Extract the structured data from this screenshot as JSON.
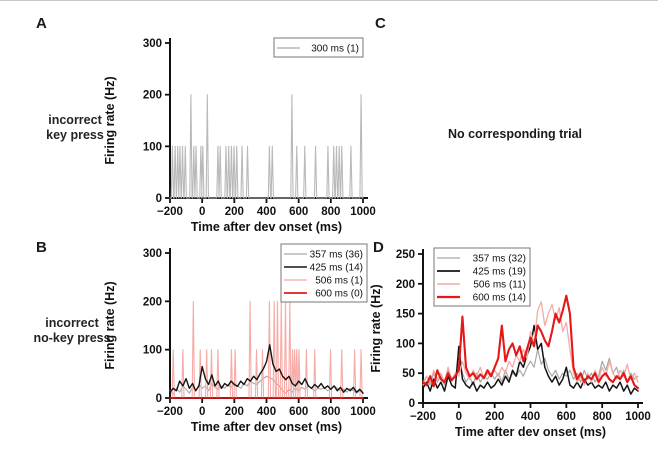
{
  "panel_labels": {
    "a": "A",
    "b": "B",
    "c": "C",
    "d": "D"
  },
  "row_labels": {
    "a_line1": "incorrect",
    "a_line2": "key press",
    "b_line1": "incorrect",
    "b_line2": "no-key press"
  },
  "panel_c_text": "No corresponding trial",
  "colors": {
    "axis": "#111111",
    "gray": "#a8a8a8",
    "light_gray": "#b9b9b9",
    "black": "#151515",
    "pink": "#f6aba7",
    "red": "#e51717",
    "legend_border": "#777777"
  },
  "chart_data": [
    {
      "id": "chartA",
      "type": "line",
      "panel": "A",
      "xlabel": "Time after dev onset (ms)",
      "ylabel": "Firing rate (Hz)",
      "xlim": [
        -200,
        1000
      ],
      "ylim": [
        0,
        300
      ],
      "xticks": [
        -200,
        0,
        200,
        400,
        600,
        800,
        1000
      ],
      "yticks": [
        0,
        100,
        200,
        300
      ],
      "legend_position": "top-right",
      "legend": [
        {
          "label": "300 ms (1)",
          "color": "#b9b9b9",
          "width": 1.4
        }
      ],
      "series": [
        {
          "name": "300 ms (1)",
          "color": "#b9b9b9",
          "width": 1.1,
          "mode": "spikes",
          "spikes": [
            [
              -185,
              100
            ],
            [
              -168,
              100
            ],
            [
              -152,
              100
            ],
            [
              -138,
              100
            ],
            [
              -122,
              100
            ],
            [
              -105,
              100
            ],
            [
              -70,
              200
            ],
            [
              -52,
              100
            ],
            [
              -38,
              100
            ],
            [
              -8,
              100
            ],
            [
              4,
              100
            ],
            [
              32,
              200
            ],
            [
              98,
              100
            ],
            [
              112,
              100
            ],
            [
              148,
              100
            ],
            [
              165,
              100
            ],
            [
              182,
              100
            ],
            [
              198,
              100
            ],
            [
              215,
              100
            ],
            [
              248,
              100
            ],
            [
              282,
              100
            ],
            [
              418,
              100
            ],
            [
              436,
              100
            ],
            [
              558,
              200
            ],
            [
              588,
              100
            ],
            [
              638,
              100
            ],
            [
              705,
              100
            ],
            [
              782,
              100
            ],
            [
              818,
              100
            ],
            [
              835,
              100
            ],
            [
              852,
              100
            ],
            [
              868,
              100
            ],
            [
              925,
              100
            ],
            [
              988,
              200
            ]
          ]
        }
      ]
    },
    {
      "id": "chartB",
      "type": "line",
      "panel": "B",
      "xlabel": "Time after dev onset (ms)",
      "ylabel": "Firing rate (Hz)",
      "xlim": [
        -200,
        1000
      ],
      "ylim": [
        0,
        300
      ],
      "xticks": [
        -200,
        0,
        200,
        400,
        600,
        800,
        1000
      ],
      "yticks": [
        0,
        100,
        200,
        300
      ],
      "legend_position": "top-right",
      "legend": [
        {
          "label": "357 ms (36)",
          "color": "#a8a8a8",
          "width": 1.2
        },
        {
          "label": "425 ms (14)",
          "color": "#151515",
          "width": 1.5
        },
        {
          "label": "506 ms  (1)",
          "color": "#f6aba7",
          "width": 1.2
        },
        {
          "label": "600 ms  (0)",
          "color": "#e51717",
          "width": 1.8
        }
      ],
      "series": [
        {
          "name": "357 ms (36)",
          "color": "#a8a8a8",
          "width": 1.1,
          "x_start": -200,
          "x_step": 20,
          "values": [
            15,
            8,
            20,
            12,
            25,
            18,
            10,
            22,
            15,
            28,
            20,
            25,
            15,
            30,
            22,
            18,
            25,
            20,
            28,
            22,
            30,
            25,
            20,
            30,
            25,
            35,
            30,
            28,
            35,
            40,
            45,
            42,
            38,
            30,
            25,
            15,
            10,
            18,
            12,
            20,
            15,
            22,
            18,
            25,
            20,
            15,
            20,
            18,
            22,
            15,
            18,
            25,
            20,
            15,
            18,
            12,
            20,
            15,
            10,
            15,
            12
          ]
        },
        {
          "name": "506 ms (1)",
          "color": "#f6aba7",
          "width": 1.1,
          "mode": "spikes",
          "spikes": [
            [
              -180,
              100
            ],
            [
              -120,
              100
            ],
            [
              -55,
              200
            ],
            [
              -12,
              100
            ],
            [
              28,
              100
            ],
            [
              58,
              100
            ],
            [
              98,
              100
            ],
            [
              182,
              100
            ],
            [
              205,
              100
            ],
            [
              298,
              200
            ],
            [
              338,
              100
            ],
            [
              375,
              100
            ],
            [
              418,
              200
            ],
            [
              448,
              200
            ],
            [
              468,
              200
            ],
            [
              492,
              200
            ],
            [
              518,
              200
            ],
            [
              545,
              200
            ],
            [
              562,
              100
            ],
            [
              575,
              100
            ],
            [
              588,
              100
            ],
            [
              602,
              100
            ],
            [
              648,
              100
            ],
            [
              700,
              100
            ],
            [
              798,
              100
            ],
            [
              868,
              100
            ],
            [
              948,
              100
            ],
            [
              988,
              100
            ]
          ]
        },
        {
          "name": "425 ms (14)",
          "color": "#151515",
          "width": 1.4,
          "x_start": -200,
          "x_step": 20,
          "values": [
            12,
            20,
            15,
            35,
            25,
            40,
            20,
            30,
            15,
            25,
            65,
            40,
            28,
            48,
            25,
            35,
            20,
            30,
            25,
            35,
            28,
            24,
            35,
            28,
            40,
            35,
            45,
            38,
            50,
            60,
            75,
            110,
            70,
            55,
            60,
            45,
            38,
            45,
            30,
            25,
            35,
            28,
            40,
            25,
            20,
            28,
            22,
            30,
            20,
            25,
            18,
            25,
            15,
            22,
            12,
            20,
            15,
            22,
            12,
            18,
            10
          ]
        },
        {
          "name": "600 ms (0)",
          "color": "#e51717",
          "width": 1.6,
          "x_start": -200,
          "x_step": 1200,
          "values": [
            0,
            0
          ]
        }
      ]
    },
    {
      "id": "chartD",
      "type": "line",
      "panel": "D",
      "xlabel": "Time after dev onset (ms)",
      "ylabel": "Firing rate (Hz)",
      "xlim": [
        -200,
        1000
      ],
      "ylim": [
        0,
        250
      ],
      "xticks": [
        -200,
        0,
        200,
        400,
        600,
        800,
        1000
      ],
      "yticks": [
        0,
        50,
        100,
        150,
        200,
        250
      ],
      "legend_position": "top-left",
      "legend": [
        {
          "label": "357 ms (32)",
          "color": "#a8a8a8",
          "width": 1.2
        },
        {
          "label": "425 ms (19)",
          "color": "#151515",
          "width": 1.8
        },
        {
          "label": "506 ms (11)",
          "color": "#f6aba7",
          "width": 1.5
        },
        {
          "label": "600 ms (14)",
          "color": "#e51717",
          "width": 2.2
        }
      ],
      "series": [
        {
          "name": "357 ms (32)",
          "color": "#a8a8a8",
          "width": 1.2,
          "x_start": -200,
          "x_step": 20,
          "values": [
            35,
            45,
            30,
            50,
            35,
            45,
            30,
            55,
            40,
            45,
            70,
            50,
            35,
            45,
            30,
            50,
            35,
            45,
            40,
            50,
            40,
            50,
            35,
            55,
            40,
            50,
            45,
            55,
            45,
            60,
            70,
            60,
            90,
            65,
            75,
            55,
            45,
            55,
            40,
            50,
            45,
            55,
            40,
            50,
            35,
            55,
            40,
            50,
            35,
            45,
            70,
            55,
            75,
            50,
            60,
            40,
            55,
            35,
            50,
            40,
            45
          ]
        },
        {
          "name": "425 ms (19)",
          "color": "#151515",
          "width": 1.5,
          "x_start": -200,
          "x_step": 20,
          "values": [
            25,
            35,
            20,
            40,
            25,
            35,
            20,
            45,
            30,
            25,
            95,
            40,
            30,
            25,
            35,
            20,
            30,
            25,
            35,
            25,
            30,
            40,
            30,
            45,
            35,
            55,
            45,
            70,
            60,
            80,
            95,
            130,
            90,
            100,
            60,
            45,
            35,
            45,
            30,
            40,
            60,
            30,
            25,
            35,
            25,
            40,
            30,
            35,
            25,
            30,
            25,
            35,
            20,
            30,
            25,
            35,
            20,
            30,
            15,
            25,
            20
          ]
        },
        {
          "name": "506 ms (11)",
          "color": "#f6aba7",
          "width": 1.3,
          "x_start": -200,
          "x_step": 20,
          "values": [
            30,
            45,
            35,
            55,
            40,
            50,
            35,
            60,
            40,
            50,
            45,
            70,
            50,
            40,
            55,
            45,
            60,
            40,
            50,
            45,
            55,
            45,
            60,
            50,
            70,
            60,
            80,
            70,
            90,
            75,
            120,
            100,
            155,
            170,
            130,
            150,
            165,
            140,
            160,
            120,
            135,
            90,
            50,
            35,
            45,
            30,
            50,
            35,
            55,
            40,
            60,
            45,
            70,
            50,
            40,
            55,
            45,
            65,
            40,
            50,
            35
          ]
        },
        {
          "name": "600 ms (14)",
          "color": "#e51717",
          "width": 2.1,
          "x_start": -200,
          "x_step": 20,
          "values": [
            35,
            30,
            45,
            28,
            55,
            40,
            35,
            50,
            38,
            45,
            55,
            145,
            60,
            45,
            50,
            40,
            48,
            42,
            55,
            45,
            60,
            75,
            130,
            70,
            90,
            100,
            80,
            95,
            70,
            90,
            110,
            95,
            130,
            120,
            105,
            95,
            120,
            150,
            135,
            155,
            180,
            150,
            60,
            40,
            50,
            35,
            45,
            40,
            50,
            35,
            45,
            50,
            40,
            35,
            45,
            40,
            50,
            35,
            45,
            30,
            25
          ]
        }
      ]
    }
  ]
}
